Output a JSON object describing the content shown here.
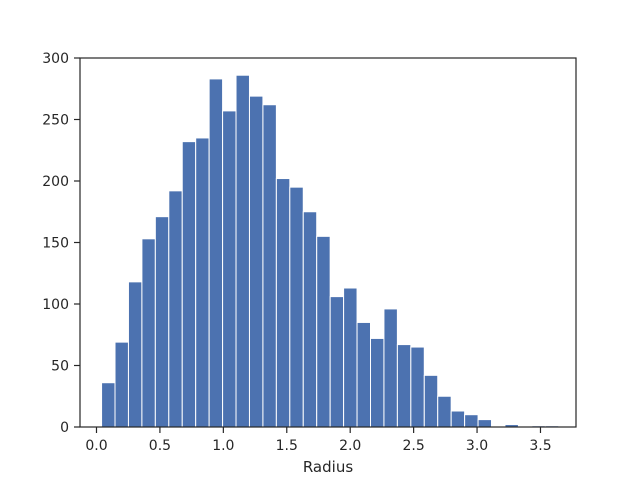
{
  "chart_data": {
    "type": "bar",
    "xlabel": "Radius",
    "ylabel": "",
    "xlim": [
      -0.13,
      3.78
    ],
    "ylim": [
      0,
      300
    ],
    "xticks": [
      0.0,
      0.5,
      1.0,
      1.5,
      2.0,
      2.5,
      3.0,
      3.5
    ],
    "xtick_labels": [
      "0.0",
      "0.5",
      "1.0",
      "1.5",
      "2.0",
      "2.5",
      "3.0",
      "3.5"
    ],
    "yticks": [
      0,
      50,
      100,
      150,
      200,
      250,
      300
    ],
    "ytick_labels": [
      "0",
      "50",
      "100",
      "150",
      "200",
      "250",
      "300"
    ],
    "bin_start": 0.04,
    "bin_width": 0.106,
    "values": [
      36,
      69,
      118,
      153,
      171,
      192,
      232,
      235,
      283,
      257,
      286,
      269,
      262,
      202,
      195,
      175,
      155,
      106,
      113,
      85,
      72,
      96,
      67,
      65,
      42,
      25,
      13,
      10,
      6,
      0,
      2,
      0,
      1,
      1
    ],
    "bar_color": "#4c72b0",
    "grid": false,
    "legend": "none"
  }
}
